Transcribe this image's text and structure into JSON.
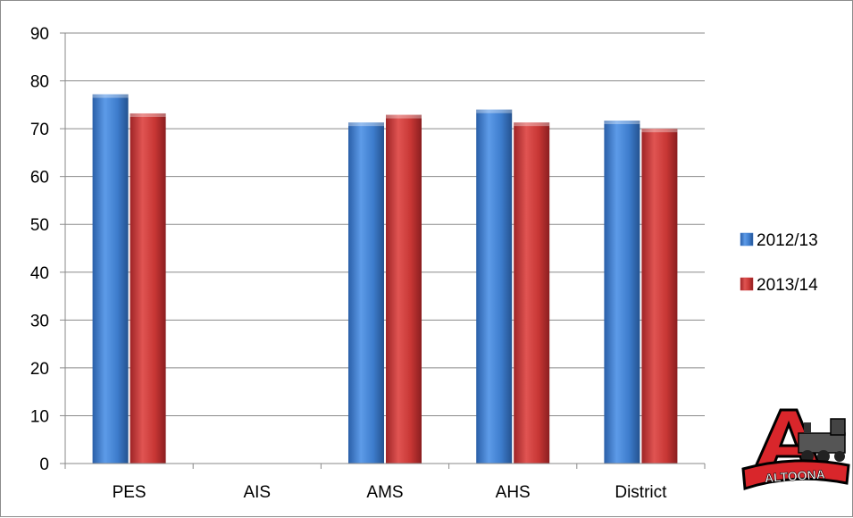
{
  "chart_data": {
    "type": "bar",
    "categories": [
      "PES",
      "AIS",
      "AMS",
      "AHS",
      "District"
    ],
    "series": [
      {
        "name": "2012/13",
        "values": [
          77.2,
          null,
          71.3,
          74.0,
          71.7
        ],
        "color": "#3f7fd1"
      },
      {
        "name": "2013/14",
        "values": [
          73.2,
          null,
          72.9,
          71.3,
          70.0
        ],
        "color": "#c9383a"
      }
    ],
    "ylim": [
      0,
      90
    ],
    "yticks": [
      0,
      10,
      20,
      30,
      40,
      50,
      60,
      70,
      80,
      90
    ],
    "grid": true,
    "legend_position": "right",
    "logo": {
      "text": "ALTOONA",
      "letter": "A",
      "colors": [
        "#d9262b",
        "#000000",
        "#ffffff"
      ]
    }
  }
}
